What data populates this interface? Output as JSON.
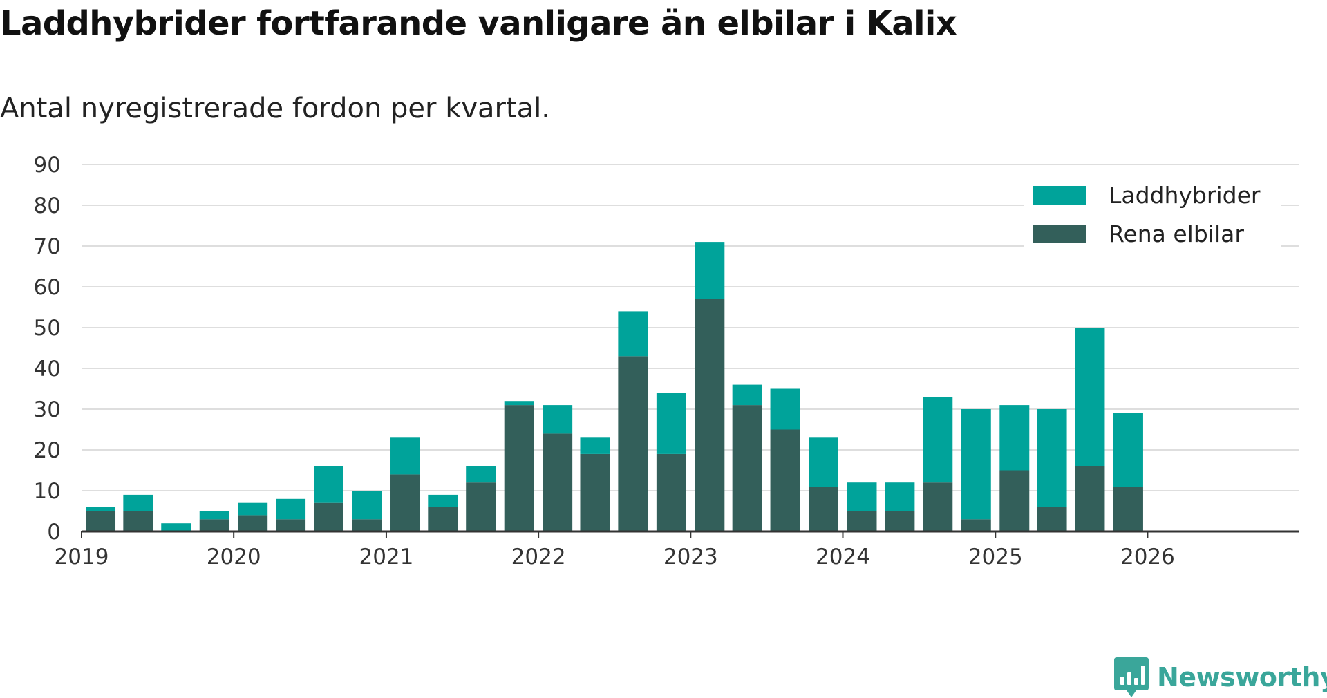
{
  "chart_data": {
    "type": "bar",
    "stacked": true,
    "title": "Laddhybrider fortfarande vanligare än elbilar i Kalix",
    "subtitle": "Antal nyregistrerade fordon per kvartal.",
    "xlabel": "",
    "ylabel": "",
    "ylim": [
      0,
      90
    ],
    "yticks": [
      0,
      10,
      20,
      30,
      40,
      50,
      60,
      70,
      80,
      90
    ],
    "x_start": "2019-01-01",
    "x_end": "2026-12-31",
    "xticks": [
      {
        "label": "2019",
        "date": "2019-01-01"
      },
      {
        "label": "2020",
        "date": "2020-01-01"
      },
      {
        "label": "2021",
        "date": "2021-01-01"
      },
      {
        "label": "2022",
        "date": "2022-01-01"
      },
      {
        "label": "2023",
        "date": "2023-01-01"
      },
      {
        "label": "2024",
        "date": "2024-01-01"
      },
      {
        "label": "2025",
        "date": "2025-01-01"
      },
      {
        "label": "2026",
        "date": "2026-01-01"
      }
    ],
    "grid": true,
    "legend_position": "top-right",
    "categories": [
      "2019-Q1",
      "2019-Q2",
      "2019-Q3",
      "2019-Q4",
      "2020-Q1",
      "2020-Q2",
      "2020-Q3",
      "2020-Q4",
      "2021-Q1",
      "2021-Q2",
      "2021-Q3",
      "2021-Q4",
      "2022-Q1",
      "2022-Q2",
      "2022-Q3",
      "2022-Q4",
      "2023-Q1",
      "2023-Q2",
      "2023-Q3",
      "2023-Q4",
      "2024-Q1",
      "2024-Q2",
      "2024-Q3",
      "2024-Q4",
      "2025-Q1",
      "2025-Q2",
      "2025-Q3",
      "2025-Q4",
      "2026-Q1",
      "2026-Q2",
      "2026-Q3"
    ],
    "dates": [
      "2019-01-01",
      "2019-04-01",
      "2019-07-01",
      "2019-10-01",
      "2020-01-01",
      "2020-04-01",
      "2020-07-01",
      "2020-10-01",
      "2021-01-01",
      "2021-04-01",
      "2021-07-01",
      "2021-10-01",
      "2022-01-01",
      "2022-04-01",
      "2022-07-01",
      "2022-10-01",
      "2023-01-01",
      "2023-04-01",
      "2023-07-01",
      "2023-10-01",
      "2024-01-01",
      "2024-04-01",
      "2024-07-01",
      "2024-10-01",
      "2025-01-01",
      "2025-04-01",
      "2025-07-01",
      "2025-10-01",
      "2026-01-01",
      "2026-04-01",
      "2026-07-01"
    ],
    "series": [
      {
        "name": "Rena elbilar",
        "color": "#335f5a",
        "values": [
          5,
          5,
          0,
          3,
          4,
          3,
          7,
          3,
          14,
          6,
          12,
          31,
          24,
          19,
          43,
          19,
          57,
          31,
          25,
          11,
          5,
          5,
          12,
          3,
          15,
          6,
          16,
          11,
          null,
          null,
          null
        ]
      },
      {
        "name": "Laddhybrider",
        "color": "#00a39a",
        "values": [
          1,
          4,
          2,
          2,
          3,
          5,
          9,
          7,
          9,
          3,
          4,
          1,
          7,
          4,
          11,
          15,
          14,
          5,
          10,
          12,
          7,
          7,
          21,
          27,
          16,
          24,
          34,
          18,
          null,
          null,
          null
        ]
      }
    ],
    "legend": [
      {
        "name": "Laddhybrider",
        "color": "#00a39a"
      },
      {
        "name": "Rena elbilar",
        "color": "#335f5a"
      }
    ]
  },
  "brand": {
    "name": "Newsworthy",
    "color": "#3aa69a",
    "icon": "newsworthy-logo-icon"
  }
}
